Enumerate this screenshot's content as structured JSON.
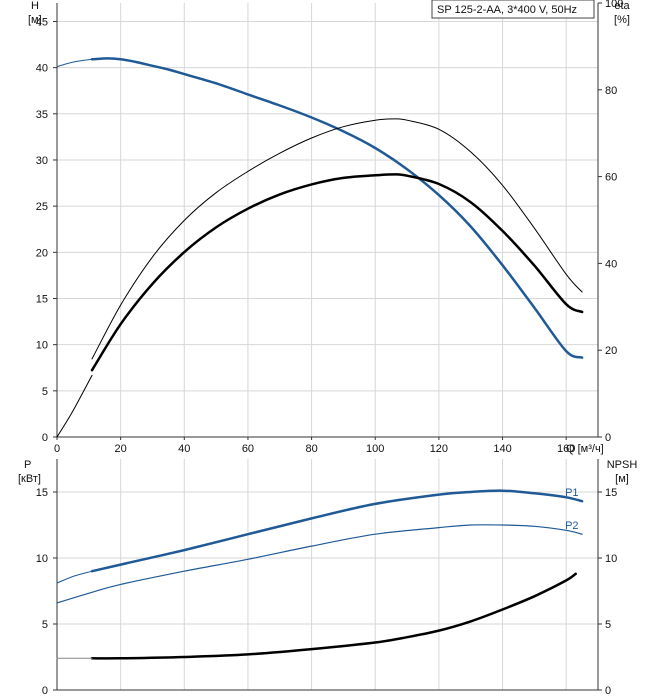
{
  "chart_data": [
    {
      "type": "line",
      "title": "SP 125-2-AA, 3*400 V, 50Hz",
      "xlabel": "Q [м³/ч]",
      "xlim": [
        0,
        170
      ],
      "x_ticks": [
        "0",
        "20",
        "40",
        "60",
        "80",
        "100",
        "120",
        "140",
        "160"
      ],
      "left_axis": {
        "label_top": "H",
        "label_unit": "[м]",
        "ylim": [
          0,
          47
        ],
        "ticks": [
          "0",
          "5",
          "10",
          "15",
          "20",
          "25",
          "30",
          "35",
          "40",
          "45"
        ]
      },
      "right_axis": {
        "label_top": "eta",
        "label_unit": "[%]",
        "ylim": [
          0,
          100
        ],
        "ticks": [
          "0",
          "20",
          "40",
          "60",
          "80",
          "100"
        ]
      },
      "grid": true,
      "series": [
        {
          "axis": "left",
          "color": "#1f5a96",
          "width": 2.5,
          "x": [
            11,
            16,
            20,
            25,
            30,
            35,
            40,
            50,
            60,
            70,
            80,
            90,
            100,
            110,
            120,
            130,
            140,
            150,
            160,
            165
          ],
          "y": [
            40.9,
            41.0,
            40.9,
            40.6,
            40.2,
            39.8,
            39.3,
            38.3,
            37.1,
            35.9,
            34.6,
            33.1,
            31.3,
            29.0,
            26.2,
            22.8,
            18.6,
            14.0,
            9.3,
            8.6
          ]
        },
        {
          "axis": "left",
          "color": "#1f5a96",
          "width": 1,
          "x": [
            0,
            5,
            11
          ],
          "y": [
            40.1,
            40.6,
            40.9
          ]
        },
        {
          "axis": "right",
          "color": "#000000",
          "width": 2.5,
          "x": [
            11,
            20,
            30,
            40,
            50,
            60,
            70,
            80,
            90,
            100,
            106,
            110,
            120,
            130,
            140,
            150,
            160,
            165
          ],
          "y": [
            15.4,
            26.0,
            35.3,
            42.6,
            48.3,
            52.6,
            55.9,
            58.2,
            59.7,
            60.3,
            60.5,
            60.2,
            58.3,
            54.1,
            47.5,
            39.5,
            30.6,
            28.8
          ]
        },
        {
          "axis": "right",
          "color": "#000000",
          "width": 1,
          "x": [
            11,
            20,
            30,
            40,
            50,
            60,
            70,
            80,
            90,
            100,
            106,
            110,
            120,
            130,
            140,
            150,
            160,
            165
          ],
          "y": [
            18.0,
            30.4,
            41.5,
            49.9,
            56.3,
            61.2,
            65.4,
            68.9,
            71.5,
            73.0,
            73.3,
            73.0,
            70.9,
            65.7,
            58.0,
            48.1,
            37.5,
            33.4
          ]
        },
        {
          "axis": "right",
          "color": "#000000",
          "width": 1,
          "x": [
            0,
            5,
            11
          ],
          "y": [
            0,
            6.0,
            14.2
          ]
        }
      ]
    },
    {
      "type": "line",
      "xlim": [
        0,
        170
      ],
      "left_axis": {
        "label_top": "P",
        "label_unit": "[кВт]",
        "ylim": [
          0,
          17.5
        ],
        "ticks": [
          "0",
          "5",
          "10",
          "15"
        ]
      },
      "right_axis": {
        "label_top": "NPSH",
        "label_unit": "[м]",
        "ylim": [
          0,
          17.5
        ],
        "ticks": [
          "0",
          "5",
          "10",
          "15"
        ]
      },
      "grid": true,
      "series": [
        {
          "name": "P1",
          "axis": "left",
          "color": "#1f5a96",
          "width": 2.5,
          "x": [
            11,
            20,
            40,
            60,
            80,
            100,
            120,
            130,
            140,
            150,
            160,
            165
          ],
          "y": [
            9.0,
            9.5,
            10.6,
            11.8,
            13.0,
            14.1,
            14.8,
            15.0,
            15.1,
            14.9,
            14.6,
            14.3
          ]
        },
        {
          "axis": "left",
          "color": "#1f5a96",
          "width": 1,
          "x": [
            0,
            5,
            11
          ],
          "y": [
            8.1,
            8.6,
            9.0
          ]
        },
        {
          "name": "P2",
          "axis": "left",
          "color": "#1f5a96",
          "width": 1.2,
          "x": [
            0,
            11,
            20,
            40,
            60,
            80,
            100,
            120,
            130,
            140,
            150,
            160,
            165
          ],
          "y": [
            6.6,
            7.4,
            8.0,
            9.0,
            9.9,
            10.9,
            11.8,
            12.3,
            12.5,
            12.5,
            12.4,
            12.1,
            11.8
          ]
        },
        {
          "axis": "right",
          "color": "#000000",
          "width": 2.5,
          "x": [
            11,
            20,
            40,
            60,
            80,
            100,
            110,
            120,
            130,
            140,
            150,
            160,
            163
          ],
          "y": [
            2.4,
            2.4,
            2.5,
            2.7,
            3.1,
            3.6,
            4.0,
            4.5,
            5.2,
            6.1,
            7.1,
            8.3,
            8.8
          ]
        },
        {
          "axis": "right",
          "color": "#888888",
          "width": 1,
          "x": [
            0,
            11
          ],
          "y": [
            2.4,
            2.4
          ]
        }
      ]
    }
  ]
}
